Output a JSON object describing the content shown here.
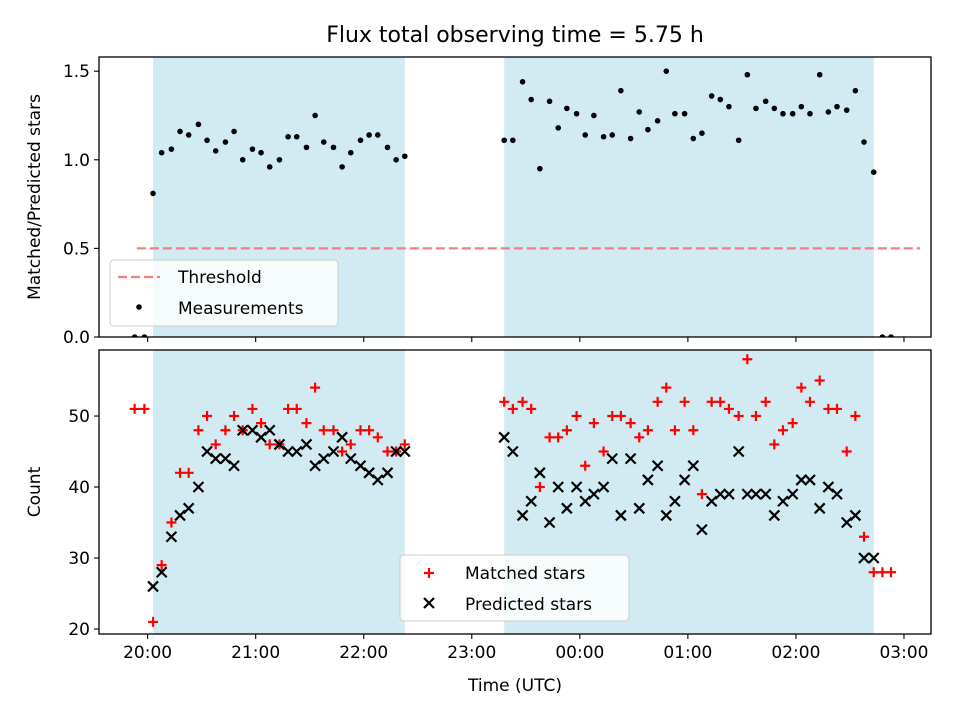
{
  "figure_title": "Flux total observing time = 5.75 h",
  "chart_data": [
    {
      "type": "scatter",
      "title": "Flux total observing time = 5.75 h",
      "xlabel": "",
      "ylabel": "Matched/Predicted stars",
      "xlim_hours": [
        19.55,
        27.25
      ],
      "ylim": [
        0,
        1.58
      ],
      "yticks": [
        0.0,
        0.5,
        1.0,
        1.5
      ],
      "ytick_labels": [
        "0.0",
        "0.5",
        "1.0",
        "1.5"
      ],
      "shaded_intervals_hours": [
        [
          20.05,
          22.38
        ],
        [
          23.3,
          26.72
        ]
      ],
      "shade_color": "#add8e6",
      "threshold": {
        "name": "Threshold",
        "value": 0.5,
        "x_range_hours": [
          19.9,
          27.15
        ],
        "color": "#f08080"
      },
      "legend": {
        "position": "lower-left",
        "entries": [
          "Threshold",
          "Measurements"
        ]
      },
      "series": [
        {
          "name": "Measurements",
          "marker": "dot",
          "color": "#000000",
          "points": [
            [
              19.88,
              0.0
            ],
            [
              19.97,
              0.0
            ],
            [
              20.05,
              0.81
            ],
            [
              20.13,
              1.04
            ],
            [
              20.22,
              1.06
            ],
            [
              20.3,
              1.16
            ],
            [
              20.38,
              1.14
            ],
            [
              20.47,
              1.2
            ],
            [
              20.55,
              1.11
            ],
            [
              20.63,
              1.05
            ],
            [
              20.72,
              1.1
            ],
            [
              20.8,
              1.16
            ],
            [
              20.88,
              1.0
            ],
            [
              20.97,
              1.06
            ],
            [
              21.05,
              1.04
            ],
            [
              21.13,
              0.96
            ],
            [
              21.22,
              1.0
            ],
            [
              21.3,
              1.13
            ],
            [
              21.38,
              1.13
            ],
            [
              21.47,
              1.07
            ],
            [
              21.55,
              1.25
            ],
            [
              21.63,
              1.1
            ],
            [
              21.72,
              1.07
            ],
            [
              21.8,
              0.96
            ],
            [
              21.88,
              1.04
            ],
            [
              21.97,
              1.11
            ],
            [
              22.05,
              1.14
            ],
            [
              22.13,
              1.14
            ],
            [
              22.22,
              1.07
            ],
            [
              22.3,
              1.0
            ],
            [
              22.38,
              1.02
            ],
            [
              23.3,
              1.11
            ],
            [
              23.38,
              1.11
            ],
            [
              23.47,
              1.44
            ],
            [
              23.55,
              1.34
            ],
            [
              23.63,
              0.95
            ],
            [
              23.72,
              1.33
            ],
            [
              23.8,
              1.18
            ],
            [
              23.88,
              1.29
            ],
            [
              23.97,
              1.26
            ],
            [
              24.05,
              1.14
            ],
            [
              24.13,
              1.25
            ],
            [
              24.22,
              1.13
            ],
            [
              24.3,
              1.14
            ],
            [
              24.38,
              1.39
            ],
            [
              24.47,
              1.12
            ],
            [
              24.55,
              1.27
            ],
            [
              24.63,
              1.17
            ],
            [
              24.72,
              1.22
            ],
            [
              24.8,
              1.5
            ],
            [
              24.88,
              1.26
            ],
            [
              24.97,
              1.26
            ],
            [
              25.05,
              1.12
            ],
            [
              25.13,
              1.15
            ],
            [
              25.22,
              1.36
            ],
            [
              25.3,
              1.34
            ],
            [
              25.38,
              1.3
            ],
            [
              25.47,
              1.11
            ],
            [
              25.55,
              1.48
            ],
            [
              25.63,
              1.29
            ],
            [
              25.72,
              1.33
            ],
            [
              25.8,
              1.29
            ],
            [
              25.88,
              1.26
            ],
            [
              25.97,
              1.26
            ],
            [
              26.05,
              1.3
            ],
            [
              26.13,
              1.26
            ],
            [
              26.22,
              1.48
            ],
            [
              26.3,
              1.27
            ],
            [
              26.38,
              1.3
            ],
            [
              26.47,
              1.28
            ],
            [
              26.55,
              1.39
            ],
            [
              26.63,
              1.1
            ],
            [
              26.72,
              0.93
            ],
            [
              26.8,
              0.0
            ],
            [
              26.88,
              0.0
            ]
          ]
        }
      ]
    },
    {
      "type": "scatter",
      "title": "",
      "xlabel": "Time (UTC)",
      "ylabel": "Count",
      "xlim_hours": [
        19.55,
        27.25
      ],
      "ylim": [
        19.3,
        59.3
      ],
      "yticks": [
        20,
        30,
        40,
        50
      ],
      "ytick_labels": [
        "20",
        "30",
        "40",
        "50"
      ],
      "xticks_hours": [
        20,
        21,
        22,
        23,
        24,
        25,
        26,
        27
      ],
      "xtick_labels": [
        "20:00",
        "21:00",
        "22:00",
        "23:00",
        "00:00",
        "01:00",
        "02:00",
        "03:00"
      ],
      "shaded_intervals_hours": [
        [
          20.05,
          22.38
        ],
        [
          23.3,
          26.72
        ]
      ],
      "shade_color": "#add8e6",
      "legend": {
        "position": "lower-center",
        "entries": [
          "Matched stars",
          "Predicted stars"
        ]
      },
      "series": [
        {
          "name": "Matched stars",
          "marker": "plus",
          "color": "#ff0000",
          "points": [
            [
              19.88,
              51
            ],
            [
              19.97,
              51
            ],
            [
              20.05,
              21
            ],
            [
              20.13,
              29
            ],
            [
              20.22,
              35
            ],
            [
              20.3,
              42
            ],
            [
              20.38,
              42
            ],
            [
              20.47,
              48
            ],
            [
              20.55,
              50
            ],
            [
              20.63,
              46
            ],
            [
              20.72,
              48
            ],
            [
              20.8,
              50
            ],
            [
              20.88,
              48
            ],
            [
              20.97,
              51
            ],
            [
              21.05,
              49
            ],
            [
              21.13,
              46
            ],
            [
              21.22,
              46
            ],
            [
              21.3,
              51
            ],
            [
              21.38,
              51
            ],
            [
              21.47,
              49
            ],
            [
              21.55,
              54
            ],
            [
              21.63,
              48
            ],
            [
              21.72,
              48
            ],
            [
              21.8,
              45
            ],
            [
              21.88,
              46
            ],
            [
              21.97,
              48
            ],
            [
              22.05,
              48
            ],
            [
              22.13,
              47
            ],
            [
              22.22,
              45
            ],
            [
              22.3,
              45
            ],
            [
              22.38,
              46
            ],
            [
              23.3,
              52
            ],
            [
              23.38,
              51
            ],
            [
              23.47,
              52
            ],
            [
              23.55,
              51
            ],
            [
              23.63,
              40
            ],
            [
              23.72,
              47
            ],
            [
              23.8,
              47
            ],
            [
              23.88,
              48
            ],
            [
              23.97,
              50
            ],
            [
              24.05,
              43
            ],
            [
              24.13,
              49
            ],
            [
              24.22,
              45
            ],
            [
              24.3,
              50
            ],
            [
              24.38,
              50
            ],
            [
              24.47,
              49
            ],
            [
              24.55,
              47
            ],
            [
              24.63,
              48
            ],
            [
              24.72,
              52
            ],
            [
              24.8,
              54
            ],
            [
              24.88,
              48
            ],
            [
              24.97,
              52
            ],
            [
              25.05,
              48
            ],
            [
              25.13,
              39
            ],
            [
              25.22,
              52
            ],
            [
              25.3,
              52
            ],
            [
              25.38,
              51
            ],
            [
              25.47,
              50
            ],
            [
              25.55,
              58
            ],
            [
              25.63,
              50
            ],
            [
              25.72,
              52
            ],
            [
              25.8,
              46
            ],
            [
              25.88,
              48
            ],
            [
              25.97,
              49
            ],
            [
              26.05,
              54
            ],
            [
              26.13,
              52
            ],
            [
              26.22,
              55
            ],
            [
              26.3,
              51
            ],
            [
              26.38,
              51
            ],
            [
              26.47,
              45
            ],
            [
              26.55,
              50
            ],
            [
              26.63,
              33
            ],
            [
              26.72,
              28
            ],
            [
              26.8,
              28
            ],
            [
              26.88,
              28
            ]
          ]
        },
        {
          "name": "Predicted stars",
          "marker": "x",
          "color": "#000000",
          "points": [
            [
              20.05,
              26
            ],
            [
              20.13,
              28
            ],
            [
              20.22,
              33
            ],
            [
              20.3,
              36
            ],
            [
              20.38,
              37
            ],
            [
              20.47,
              40
            ],
            [
              20.55,
              45
            ],
            [
              20.63,
              44
            ],
            [
              20.72,
              44
            ],
            [
              20.8,
              43
            ],
            [
              20.88,
              48
            ],
            [
              20.97,
              48
            ],
            [
              21.05,
              47
            ],
            [
              21.13,
              48
            ],
            [
              21.22,
              46
            ],
            [
              21.3,
              45
            ],
            [
              21.38,
              45
            ],
            [
              21.47,
              46
            ],
            [
              21.55,
              43
            ],
            [
              21.63,
              44
            ],
            [
              21.72,
              45
            ],
            [
              21.8,
              47
            ],
            [
              21.88,
              44
            ],
            [
              21.97,
              43
            ],
            [
              22.05,
              42
            ],
            [
              22.13,
              41
            ],
            [
              22.22,
              42
            ],
            [
              22.3,
              45
            ],
            [
              22.38,
              45
            ],
            [
              23.3,
              47
            ],
            [
              23.38,
              45
            ],
            [
              23.47,
              36
            ],
            [
              23.55,
              38
            ],
            [
              23.63,
              42
            ],
            [
              23.72,
              35
            ],
            [
              23.8,
              40
            ],
            [
              23.88,
              37
            ],
            [
              23.97,
              40
            ],
            [
              24.05,
              38
            ],
            [
              24.13,
              39
            ],
            [
              24.22,
              40
            ],
            [
              24.3,
              44
            ],
            [
              24.38,
              36
            ],
            [
              24.47,
              44
            ],
            [
              24.55,
              37
            ],
            [
              24.63,
              41
            ],
            [
              24.72,
              43
            ],
            [
              24.8,
              36
            ],
            [
              24.88,
              38
            ],
            [
              24.97,
              41
            ],
            [
              25.05,
              43
            ],
            [
              25.13,
              34
            ],
            [
              25.22,
              38
            ],
            [
              25.3,
              39
            ],
            [
              25.38,
              39
            ],
            [
              25.47,
              45
            ],
            [
              25.55,
              39
            ],
            [
              25.63,
              39
            ],
            [
              25.72,
              39
            ],
            [
              25.8,
              36
            ],
            [
              25.88,
              38
            ],
            [
              25.97,
              39
            ],
            [
              26.05,
              41
            ],
            [
              26.13,
              41
            ],
            [
              26.22,
              37
            ],
            [
              26.3,
              40
            ],
            [
              26.38,
              39
            ],
            [
              26.47,
              35
            ],
            [
              26.55,
              36
            ],
            [
              26.63,
              30
            ],
            [
              26.72,
              30
            ]
          ]
        }
      ]
    }
  ]
}
